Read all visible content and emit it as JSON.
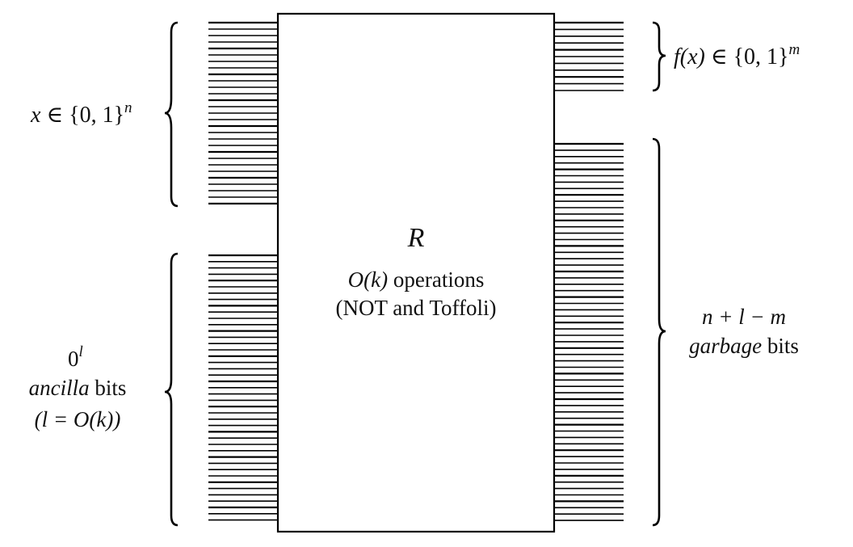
{
  "box": {
    "name": "R",
    "ops_prefix": "O(k)",
    "ops_suffix": " operations",
    "gate_set": "(NOT and Toffoli)"
  },
  "inputs": {
    "x_label": {
      "var": "x",
      "set": " ∈ {0, 1}",
      "exp": "n"
    },
    "ancilla_label": {
      "zero": "0",
      "exp": "l",
      "name_italic": "ancilla",
      "name_rest": " bits",
      "bound": "(l = O(k))"
    }
  },
  "outputs": {
    "f_label": {
      "fx": "f(x)",
      "set": " ∈ {0, 1}",
      "exp": "m"
    },
    "garbage_label": {
      "count": "n + l − m",
      "name_italic": "garbage",
      "name_rest": " bits"
    }
  },
  "wires": {
    "color": "#000000"
  }
}
